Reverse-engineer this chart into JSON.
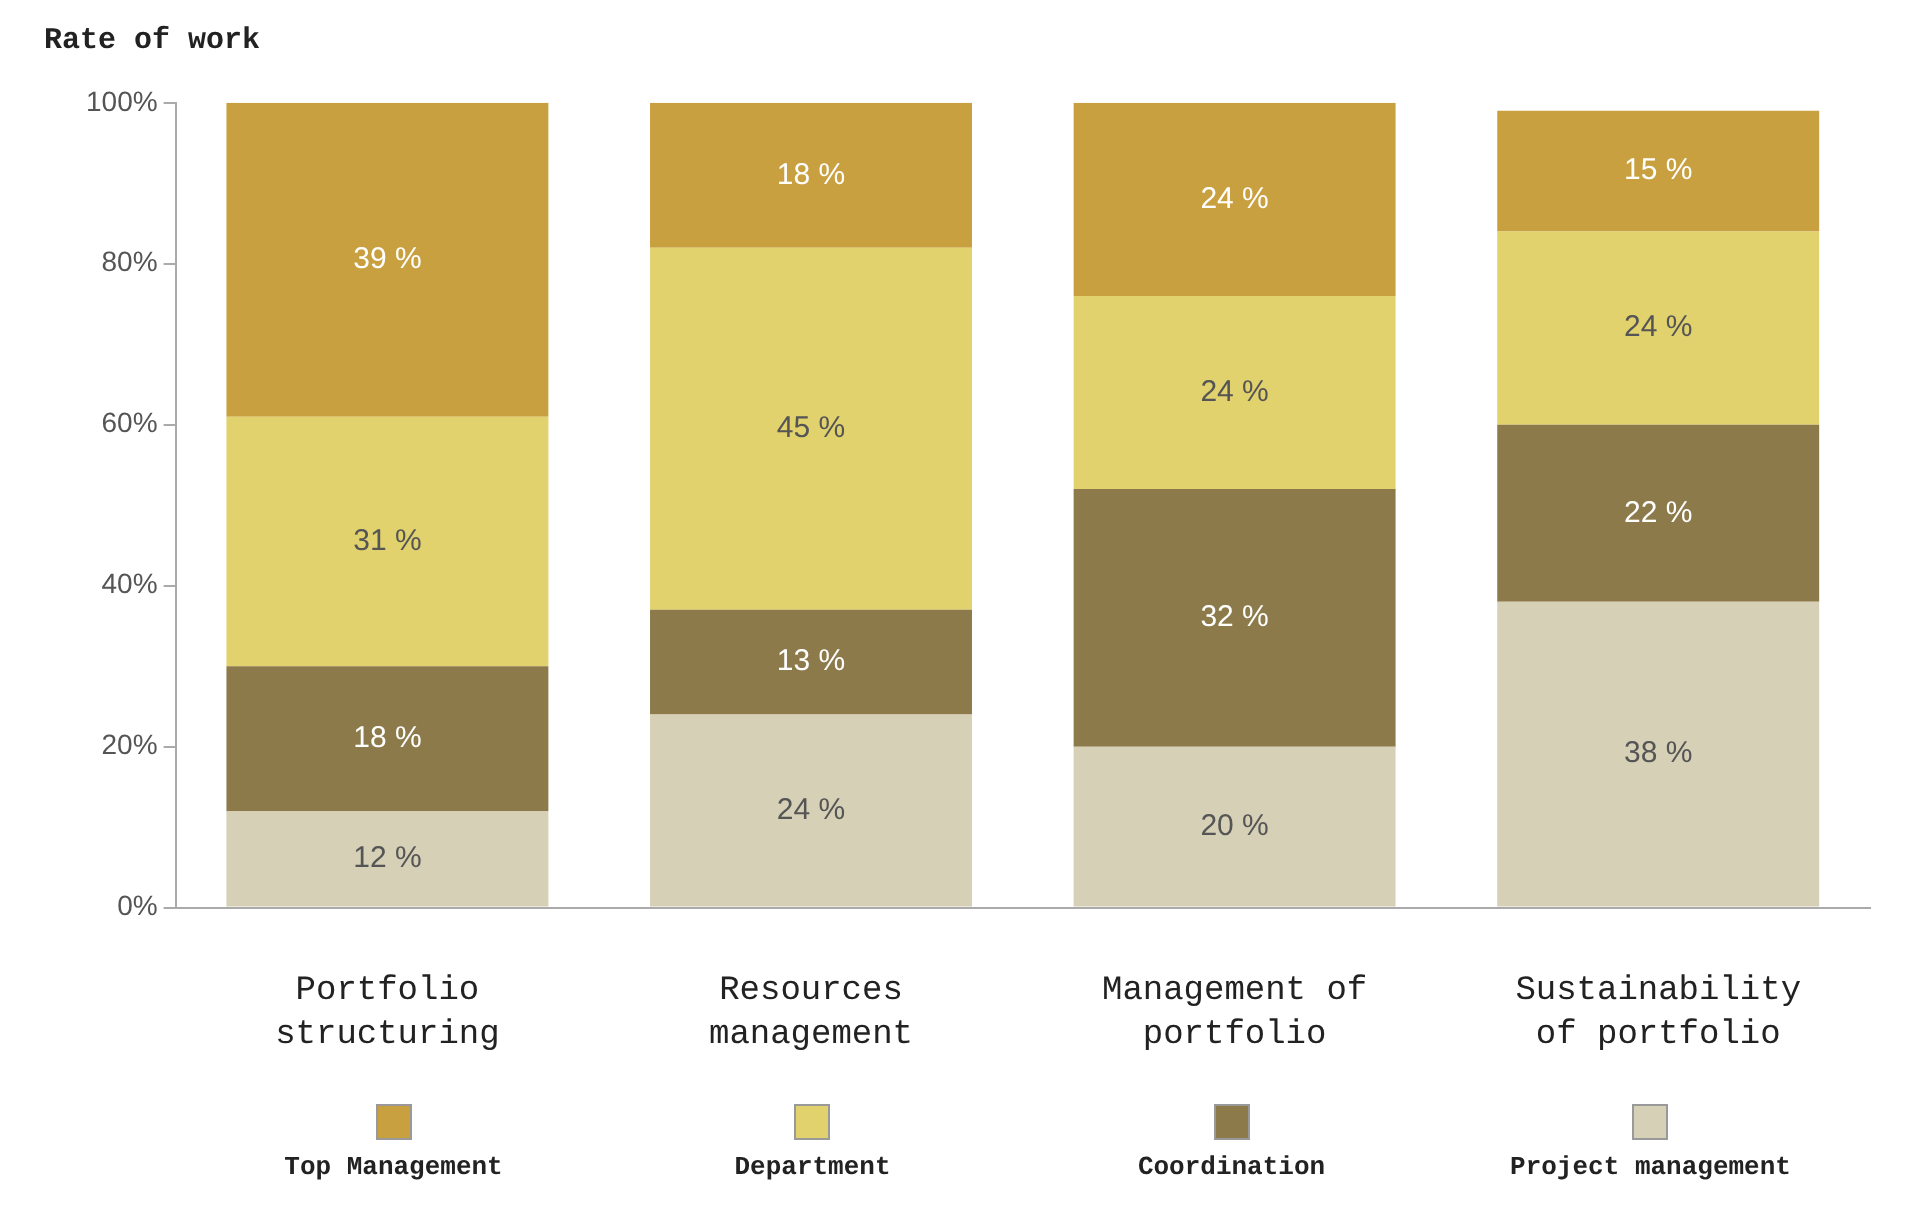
{
  "chart_data": {
    "type": "bar",
    "stacked": true,
    "ylabel": "Rate of work",
    "categories": [
      "Portfolio structuring",
      "Resources management",
      "Management of portfolio",
      "Sustainability of portfolio"
    ],
    "series": [
      {
        "name": "Project management",
        "color": "#d6d0b6",
        "values": [
          12,
          24,
          20,
          38
        ],
        "value_labels": [
          "12 %",
          "24 %",
          "20 %",
          "38 %"
        ]
      },
      {
        "name": "Coordination",
        "color": "#8c7a4a",
        "values": [
          18,
          13,
          32,
          22
        ],
        "value_labels": [
          "18 %",
          "13 %",
          "32 %",
          "22 %"
        ]
      },
      {
        "name": "Department",
        "color": "#e2d26e",
        "values": [
          31,
          45,
          24,
          24
        ],
        "value_labels": [
          "31 %",
          "45 %",
          "24 %",
          "24 %"
        ]
      },
      {
        "name": "Top Management",
        "color": "#c9a040",
        "values": [
          39,
          18,
          24,
          15
        ],
        "value_labels": [
          "39 %",
          "18 %",
          "24 %",
          "15 %"
        ]
      }
    ],
    "ylim": [
      0,
      100
    ],
    "yticks": [
      {
        "value": 0,
        "label": "0%"
      },
      {
        "value": 20,
        "label": "20%"
      },
      {
        "value": 40,
        "label": "40%"
      },
      {
        "value": 60,
        "label": "60%"
      },
      {
        "value": 80,
        "label": "80%"
      },
      {
        "value": 100,
        "label": "100%"
      }
    ],
    "grid": false,
    "legend": "bottom"
  }
}
